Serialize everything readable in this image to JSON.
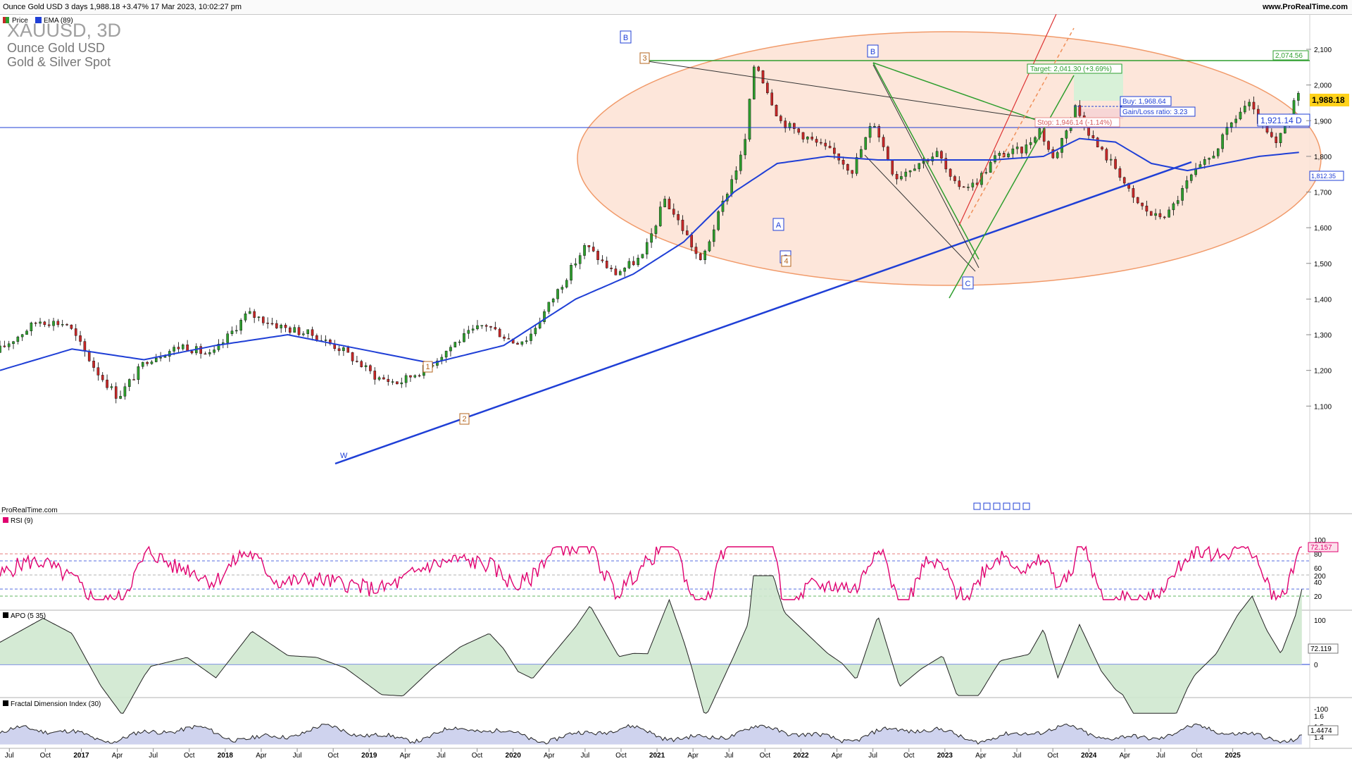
{
  "header": {
    "title": "Ounce Gold USD 3 days 1,988.18 +3.47% 17 Mar 2023, 10:02:27 pm",
    "site": "www.ProRealTime.com"
  },
  "instrument": {
    "symbol": "XAUUSD, 3D",
    "name": "Ounce Gold USD",
    "market": "Gold & Silver Spot"
  },
  "legend": {
    "price": "Price",
    "ema": "EMA (89)"
  },
  "watermark": "ProRealTime.com",
  "price_axis": {
    "ticks": [
      "2,100",
      "2,000",
      "1,900",
      "1,800",
      "1,700",
      "1,600",
      "1,500",
      "1,400",
      "1,300",
      "1,200",
      "1,100"
    ],
    "last_price": "1,988.18",
    "ema_value": "1,812.35",
    "level_2074": "2,074.56",
    "level_1921": "1,921.14 D"
  },
  "trade_box": {
    "target": "Target: 2,041.30 (+3.69%)",
    "buy": "Buy: 1,968.64",
    "ratio": "Gain/Loss ratio: 3.23",
    "stop": "Stop: 1,946.14 (-1.14%)"
  },
  "wave_labels": {
    "b1": "B",
    "b2": "B",
    "a": "A",
    "c1": "C",
    "c2": "C",
    "w3": "3",
    "w4": "4",
    "w1": "1",
    "w2": "2",
    "wW": "W"
  },
  "rsi": {
    "label": "RSI (9)",
    "value": "72.157",
    "ticks": [
      "100",
      "80",
      "60",
      "40",
      "20"
    ]
  },
  "apo": {
    "label": "APO (5 35)",
    "value": "72.119",
    "ticks": [
      "200",
      "100",
      "0",
      "-100"
    ]
  },
  "fdi": {
    "label": "Fractal Dimension Index (30)",
    "value": "1.4474",
    "ticks": [
      "1.6",
      "1.5",
      "1.4"
    ]
  },
  "time_axis": [
    {
      "t": "Jul",
      "m": 0.13
    },
    {
      "t": "Oct",
      "m": 0.63
    },
    {
      "t": "2017",
      "m": 1.13,
      "bold": true
    },
    {
      "t": "Apr",
      "m": 1.63
    },
    {
      "t": "Jul",
      "m": 2.13
    },
    {
      "t": "Oct",
      "m": 2.63
    },
    {
      "t": "2018",
      "m": 3.13,
      "bold": true
    },
    {
      "t": "Apr",
      "m": 3.63
    },
    {
      "t": "Jul",
      "m": 4.13
    },
    {
      "t": "Oct",
      "m": 4.63
    },
    {
      "t": "2019",
      "m": 5.13,
      "bold": true
    },
    {
      "t": "Apr",
      "m": 5.63
    },
    {
      "t": "Jul",
      "m": 6.13
    },
    {
      "t": "Oct",
      "m": 6.63
    },
    {
      "t": "2020",
      "m": 7.13,
      "bold": true
    },
    {
      "t": "Apr",
      "m": 7.63
    },
    {
      "t": "Jul",
      "m": 8.13
    },
    {
      "t": "Oct",
      "m": 8.63
    },
    {
      "t": "2021",
      "m": 9.13,
      "bold": true
    },
    {
      "t": "Apr",
      "m": 9.63
    },
    {
      "t": "Jul",
      "m": 10.13
    },
    {
      "t": "Oct",
      "m": 10.63
    },
    {
      "t": "2022",
      "m": 11.13,
      "bold": true
    },
    {
      "t": "Apr",
      "m": 11.63
    },
    {
      "t": "Jul",
      "m": 12.13
    },
    {
      "t": "Oct",
      "m": 12.63
    },
    {
      "t": "2023",
      "m": 13.13,
      "bold": true
    },
    {
      "t": "Apr",
      "m": 13.63
    },
    {
      "t": "Jul",
      "m": 14.13
    },
    {
      "t": "Oct",
      "m": 14.63
    },
    {
      "t": "2024",
      "m": 15.13,
      "bold": true
    },
    {
      "t": "Apr",
      "m": 15.63
    },
    {
      "t": "Jul",
      "m": 16.13
    },
    {
      "t": "Oct",
      "m": 16.63
    },
    {
      "t": "2025",
      "m": 17.13,
      "bold": true
    }
  ],
  "colors": {
    "up": "#2e9e2e",
    "down": "#c62828",
    "ema": "#1f3fd6",
    "trendline": "#1f3fd6",
    "ellipse_fill": "#fde4d6",
    "ellipse_stroke": "#f0905a",
    "rsi": "#e0006f",
    "apo_pos": "#cfe8cf",
    "apo_neg": "#ecd6d6",
    "fdi_fill": "#cfd3ee"
  },
  "chart_data": {
    "type": "candlestick",
    "title": "Ounce Gold USD 3 days",
    "interval": "3D",
    "ylim": [
      1080,
      2150
    ],
    "x_start": "2016-06",
    "x_end": "2025-02",
    "price_path": [
      [
        0,
        1250
      ],
      [
        0.6,
        1340
      ],
      [
        1.0,
        1330
      ],
      [
        1.4,
        1200
      ],
      [
        1.7,
        1125
      ],
      [
        2.1,
        1230
      ],
      [
        2.6,
        1270
      ],
      [
        3.0,
        1240
      ],
      [
        3.5,
        1360
      ],
      [
        4.0,
        1320
      ],
      [
        4.4,
        1300
      ],
      [
        4.8,
        1260
      ],
      [
        5.3,
        1180
      ],
      [
        5.6,
        1165
      ],
      [
        6.0,
        1210
      ],
      [
        6.4,
        1280
      ],
      [
        6.8,
        1330
      ],
      [
        7.2,
        1280
      ],
      [
        7.4,
        1290
      ],
      [
        7.8,
        1420
      ],
      [
        8.2,
        1550
      ],
      [
        8.6,
        1470
      ],
      [
        9.0,
        1520
      ],
      [
        9.3,
        1680
      ],
      [
        9.6,
        1580
      ],
      [
        9.8,
        1500
      ],
      [
        10.2,
        1720
      ],
      [
        10.4,
        1820
      ],
      [
        10.55,
        2070
      ],
      [
        10.9,
        1900
      ],
      [
        11.3,
        1850
      ],
      [
        11.7,
        1800
      ],
      [
        11.9,
        1760
      ],
      [
        12.2,
        1900
      ],
      [
        12.5,
        1740
      ],
      [
        12.8,
        1780
      ],
      [
        13.1,
        1810
      ],
      [
        13.3,
        1720
      ],
      [
        13.6,
        1720
      ],
      [
        13.9,
        1800
      ],
      [
        14.3,
        1820
      ],
      [
        14.5,
        1880
      ],
      [
        14.7,
        1790
      ],
      [
        15.0,
        1940
      ],
      [
        15.3,
        1830
      ],
      [
        15.6,
        1760
      ],
      [
        15.8,
        1680
      ],
      [
        16.1,
        1630
      ],
      [
        16.3,
        1640
      ],
      [
        16.6,
        1740
      ],
      [
        16.9,
        1800
      ],
      [
        17.2,
        1900
      ],
      [
        17.4,
        1950
      ],
      [
        17.6,
        1880
      ],
      [
        17.8,
        1830
      ],
      [
        18.0,
        1920
      ],
      [
        18.1,
        1988
      ]
    ],
    "ema_path": [
      [
        0,
        1200
      ],
      [
        1.0,
        1260
      ],
      [
        2.0,
        1230
      ],
      [
        3.0,
        1270
      ],
      [
        4.0,
        1300
      ],
      [
        5.0,
        1260
      ],
      [
        6.0,
        1220
      ],
      [
        7.0,
        1270
      ],
      [
        8.0,
        1400
      ],
      [
        8.8,
        1470
      ],
      [
        9.5,
        1560
      ],
      [
        10.2,
        1700
      ],
      [
        10.8,
        1780
      ],
      [
        11.5,
        1800
      ],
      [
        12.2,
        1790
      ],
      [
        13.0,
        1790
      ],
      [
        13.8,
        1790
      ],
      [
        14.5,
        1800
      ],
      [
        15.0,
        1850
      ],
      [
        15.5,
        1840
      ],
      [
        16.0,
        1780
      ],
      [
        16.5,
        1760
      ],
      [
        17.0,
        1780
      ],
      [
        17.5,
        1800
      ],
      [
        18.1,
        1812
      ]
    ],
    "horizontal_levels": [
      2074.56,
      1921.14
    ],
    "trade": {
      "target": 2041.3,
      "buy": 1968.64,
      "stop": 1946.14,
      "gain_loss_ratio": 3.23
    }
  }
}
